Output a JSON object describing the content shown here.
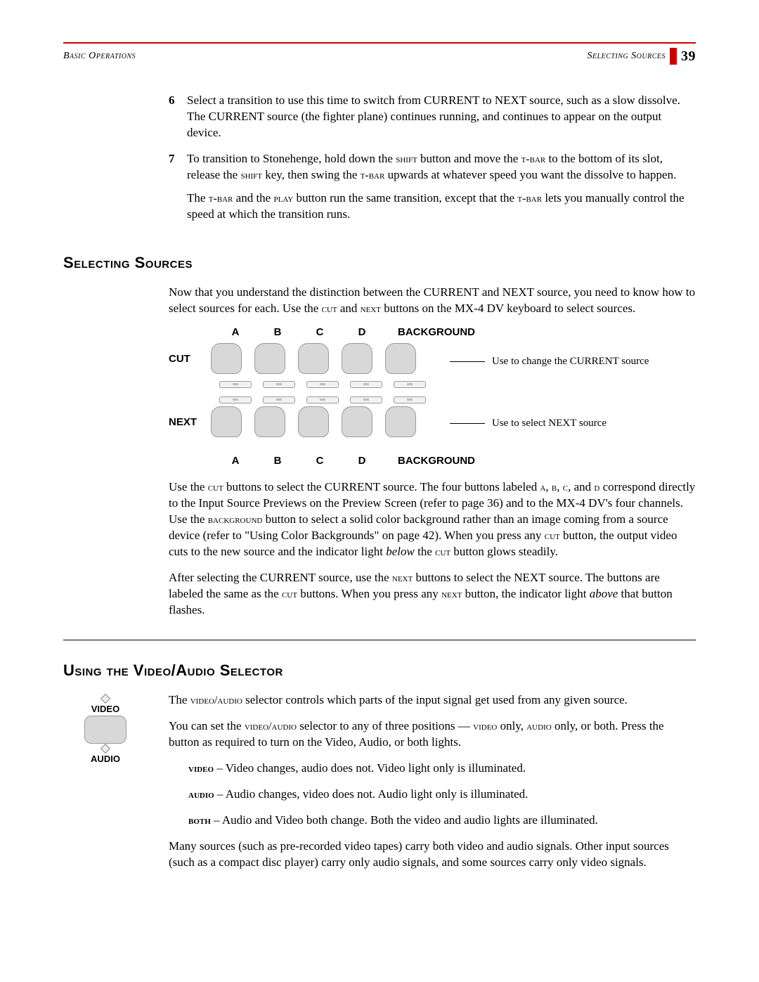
{
  "header": {
    "left": "Basic Operations",
    "right": "Selecting Sources",
    "page_number": "39",
    "rule_color": "#cc0000"
  },
  "steps": [
    {
      "num": "6",
      "text": "Select a transition to use this time to switch from CURRENT to NEXT source, such as a slow dissolve. The CURRENT source (the fighter plane) continues running, and continues to appear on the output device."
    },
    {
      "num": "7",
      "text_parts": [
        "To transition to Stonehenge, hold down the ",
        {
          "sc": "shift"
        },
        " button and move the ",
        {
          "sc": "t-bar"
        },
        " to the bottom of its slot, release the ",
        {
          "sc": "shift"
        },
        " key, then swing the ",
        {
          "sc": "t-bar"
        },
        " upwards at whatever speed you want the dissolve to happen."
      ],
      "after_parts": [
        "The ",
        {
          "sc": "t-bar"
        },
        " and the ",
        {
          "sc": "play"
        },
        " button run the same transition, except that the ",
        {
          "sc": "t-bar"
        },
        " lets you manually control the speed at which the transition runs."
      ]
    }
  ],
  "section1": {
    "heading": "Selecting Sources",
    "intro_parts": [
      "Now that you understand the distinction between the CURRENT and NEXT source, you need to know how to select sources for each. Use the ",
      {
        "sc": "cut"
      },
      " and ",
      {
        "sc": "next"
      },
      " buttons on the MX-4 DV keyboard to select sources."
    ],
    "diagram": {
      "columns": [
        "A",
        "B",
        "C",
        "D"
      ],
      "background_label": "BACKGROUND",
      "row_labels": {
        "cut": "CUT",
        "next": "NEXT"
      },
      "callouts": {
        "cut": "Use to change the CURRENT source",
        "next": "Use to select NEXT source"
      },
      "button_color": "#d8d8d8",
      "button_border": "#9a9a9a"
    },
    "para2_parts": [
      "Use the ",
      {
        "sc": "cut"
      },
      " buttons to select the CURRENT source. The four buttons labeled ",
      {
        "sc": "a"
      },
      ", ",
      {
        "sc": "b"
      },
      ", ",
      {
        "sc": "c"
      },
      ", and ",
      {
        "sc": "d"
      },
      " correspond directly to the Input Source Previews on the Preview Screen (refer to page 36) and to the MX-4 DV's four channels. Use the ",
      {
        "sc": "background"
      },
      " button to select a solid color background rather than an image coming from a source device (refer to \"Using Color Backgrounds\" on page 42). When you press any ",
      {
        "sc": "cut"
      },
      " button, the output video cuts to the new source and the indicator light ",
      {
        "it": "below"
      },
      " the ",
      {
        "sc": "cut"
      },
      " button glows steadily."
    ],
    "para3_parts": [
      "After selecting the CURRENT source, use the ",
      {
        "sc": "next"
      },
      " buttons to select the NEXT source. The buttons are labeled the same as the ",
      {
        "sc": "cut"
      },
      " buttons. When you press any ",
      {
        "sc": "next"
      },
      " button, the indicator light ",
      {
        "it": "above"
      },
      " that button flashes."
    ]
  },
  "section2": {
    "heading": "Using the Video/Audio Selector",
    "figure": {
      "top_label": "VIDEO",
      "bottom_label": "AUDIO"
    },
    "para1_parts": [
      "The ",
      {
        "sc": "video/audio"
      },
      " selector controls which parts of the input signal get used from any given source."
    ],
    "para2_parts": [
      "You can set the ",
      {
        "sc": "video/audio"
      },
      " selector to any of three positions — ",
      {
        "sc": "video"
      },
      " only, ",
      {
        "sc": "audio"
      },
      " only, or both. Press the button as required to turn on the Video, Audio, or both lights."
    ],
    "defs": [
      {
        "term": "video",
        "body": " – Video changes, audio does not. Video light only is illuminated."
      },
      {
        "term": "audio",
        "body": " – Audio changes, video does not. Audio light only is illuminated."
      },
      {
        "term": "both",
        "body": " – Audio and Video both change. Both the video and audio lights are illuminated."
      }
    ],
    "para3": "Many sources (such as pre-recorded video tapes) carry both video and audio signals. Other input sources (such as a compact disc player) carry only audio signals, and some sources carry only video signals."
  }
}
